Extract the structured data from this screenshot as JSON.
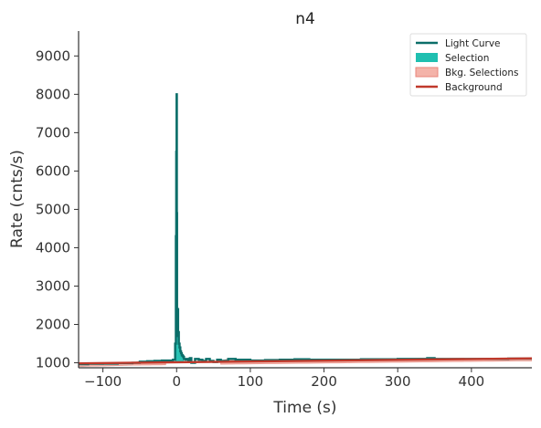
{
  "chart_data": {
    "type": "line",
    "title": "n4",
    "xlabel": "Time (s)",
    "ylabel": "Rate (cnts/s)",
    "xlim": [
      -133,
      482
    ],
    "ylim": [
      870,
      9650
    ],
    "xticks": [
      -100,
      0,
      100,
      200,
      300,
      400
    ],
    "yticks": [
      1000,
      2000,
      3000,
      4000,
      5000,
      6000,
      7000,
      8000,
      9000
    ],
    "grid": false,
    "legend_position": "top-right",
    "legend": [
      {
        "label": "Light Curve",
        "kind": "line"
      },
      {
        "label": "Selection",
        "kind": "patch"
      },
      {
        "label": "Bkg. Selections",
        "kind": "patch"
      },
      {
        "label": "Background",
        "kind": "line"
      }
    ],
    "colors": {
      "light_curve": "#0b6e69",
      "selection": "#1fbfb0",
      "bkg_selection_fill": "#f4b3a9",
      "bkg_selection_edge": "#e9857a",
      "background": "#c0392b",
      "axis": "#333333"
    },
    "light_curve": {
      "x": [
        -133,
        -120,
        -100,
        -80,
        -60,
        -50,
        -40,
        -30,
        -20,
        -10,
        -5,
        -2,
        -1,
        -0.5,
        0,
        0.3,
        0.6,
        1,
        1.5,
        2,
        3,
        4,
        5,
        6,
        7,
        8,
        9,
        10,
        12,
        14,
        16,
        18,
        20,
        25,
        30,
        35,
        40,
        45,
        50,
        55,
        60,
        70,
        80,
        100,
        120,
        140,
        160,
        180,
        200,
        250,
        300,
        340,
        350,
        400,
        450,
        482
      ],
      "y": [
        965,
        975,
        980,
        990,
        1000,
        1030,
        1040,
        1050,
        1060,
        1060,
        1080,
        1500,
        4300,
        6500,
        8000,
        4900,
        2000,
        1700,
        2400,
        1800,
        1500,
        1400,
        1300,
        1250,
        1200,
        1180,
        1150,
        1100,
        1080,
        1100,
        1050,
        1120,
        1000,
        1100,
        1080,
        1050,
        1100,
        1050,
        1020,
        1080,
        1050,
        1100,
        1080,
        1060,
        1070,
        1080,
        1090,
        1080,
        1080,
        1090,
        1100,
        1120,
        1100,
        1100,
        1110,
        1110
      ]
    },
    "selection": {
      "x": [
        -2,
        -1,
        -0.5,
        0,
        0.3,
        0.6,
        1,
        1.5,
        2,
        3,
        4,
        5,
        6,
        7,
        8,
        9,
        10
      ],
      "y": [
        1500,
        4300,
        6500,
        8000,
        4900,
        2000,
        1700,
        2400,
        1800,
        1500,
        1400,
        1300,
        1250,
        1200,
        1180,
        1150,
        1100
      ]
    },
    "background": {
      "x": [
        -133,
        482
      ],
      "y": [
        985,
        1115
      ]
    },
    "bkg_selections": [
      {
        "x": [
          -133,
          -15
        ]
      },
      {
        "x": [
          60,
          482
        ]
      }
    ]
  }
}
